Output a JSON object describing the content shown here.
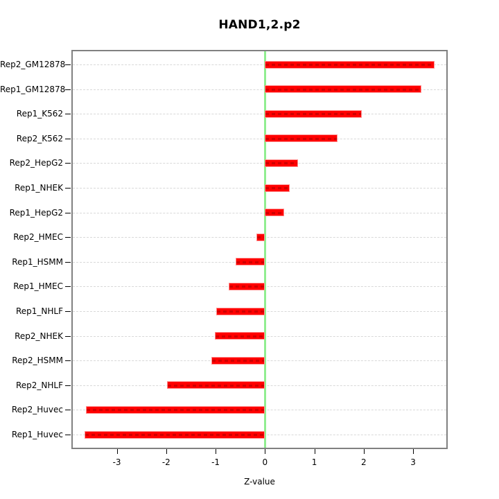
{
  "chart_data": {
    "type": "bar",
    "orientation": "horizontal",
    "title": "HAND1,2.p2",
    "xlabel": "Z-value",
    "ylabel": "",
    "categories": [
      "Rep2_GM12878",
      "Rep1_GM12878",
      "Rep1_K562",
      "Rep2_K562",
      "Rep2_HepG2",
      "Rep1_NHEK",
      "Rep1_HepG2",
      "Rep2_HMEC",
      "Rep1_HSMM",
      "Rep1_HMEC",
      "Rep1_NHLF",
      "Rep2_NHEK",
      "Rep2_HSMM",
      "Rep2_NHLF",
      "Rep2_Huvec",
      "Rep1_Huvec"
    ],
    "values": [
      3.44,
      3.16,
      1.96,
      1.47,
      0.67,
      0.5,
      0.39,
      -0.17,
      -0.6,
      -0.73,
      -0.99,
      -1.02,
      -1.09,
      -1.98,
      -3.63,
      -3.65
    ],
    "axis": {
      "xlim": [
        -3.92,
        3.7
      ],
      "xticks": [
        -3,
        -2,
        -1,
        0,
        1,
        2,
        3
      ],
      "xtick_labels": [
        "-3",
        "-2",
        "-1",
        "0",
        "1",
        "2",
        "3"
      ]
    },
    "grid": {
      "style": "dashed",
      "lines": "one horizontal dashed line per category row"
    },
    "reference_line": {
      "x": 0,
      "color": "#90EE90"
    },
    "legend": null,
    "colors": {
      "bar_fill": "#FF0000",
      "bar_border": "#FF9090",
      "grid_line": "#D8D8D8",
      "plot_border": "#808080",
      "tick": "#000000",
      "text": "#000000",
      "background": "#FFFFFF"
    }
  }
}
